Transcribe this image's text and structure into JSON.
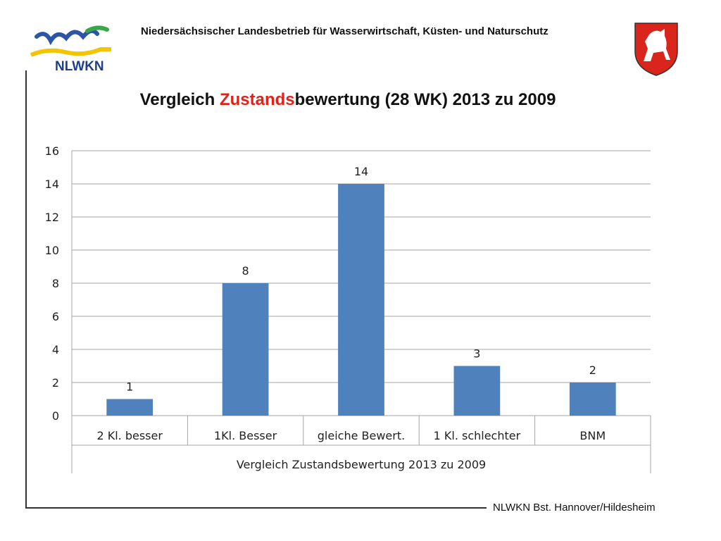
{
  "header": {
    "logo_text": "NLWKN",
    "organization": "Niedersächsischer Landesbetrieb für Wasserwirtschaft, Küsten- und Naturschutz"
  },
  "slide": {
    "title_part1": "Vergleich ",
    "title_highlight": "Zustands",
    "title_part2": "bewertung (28 WK) 2013 zu 2009",
    "highlight_color": "#e32119"
  },
  "footer": {
    "text": "NLWKN Bst. Hannover/Hildesheim"
  },
  "chart_data": {
    "type": "bar",
    "categories": [
      "2 Kl. besser",
      "1Kl. Besser",
      "gleiche Bewert.",
      "1 Kl. schlechter",
      "BNM"
    ],
    "values": [
      1,
      8,
      14,
      3,
      2
    ],
    "xlabel": "Vergleich Zustandsbewertung 2013 zu 2009",
    "ylabel": "",
    "ylim": [
      0,
      16
    ],
    "yticks": [
      0,
      2,
      4,
      6,
      8,
      10,
      12,
      14,
      16
    ],
    "grid": true,
    "bar_color": "#4f81bd",
    "data_labels": true
  }
}
